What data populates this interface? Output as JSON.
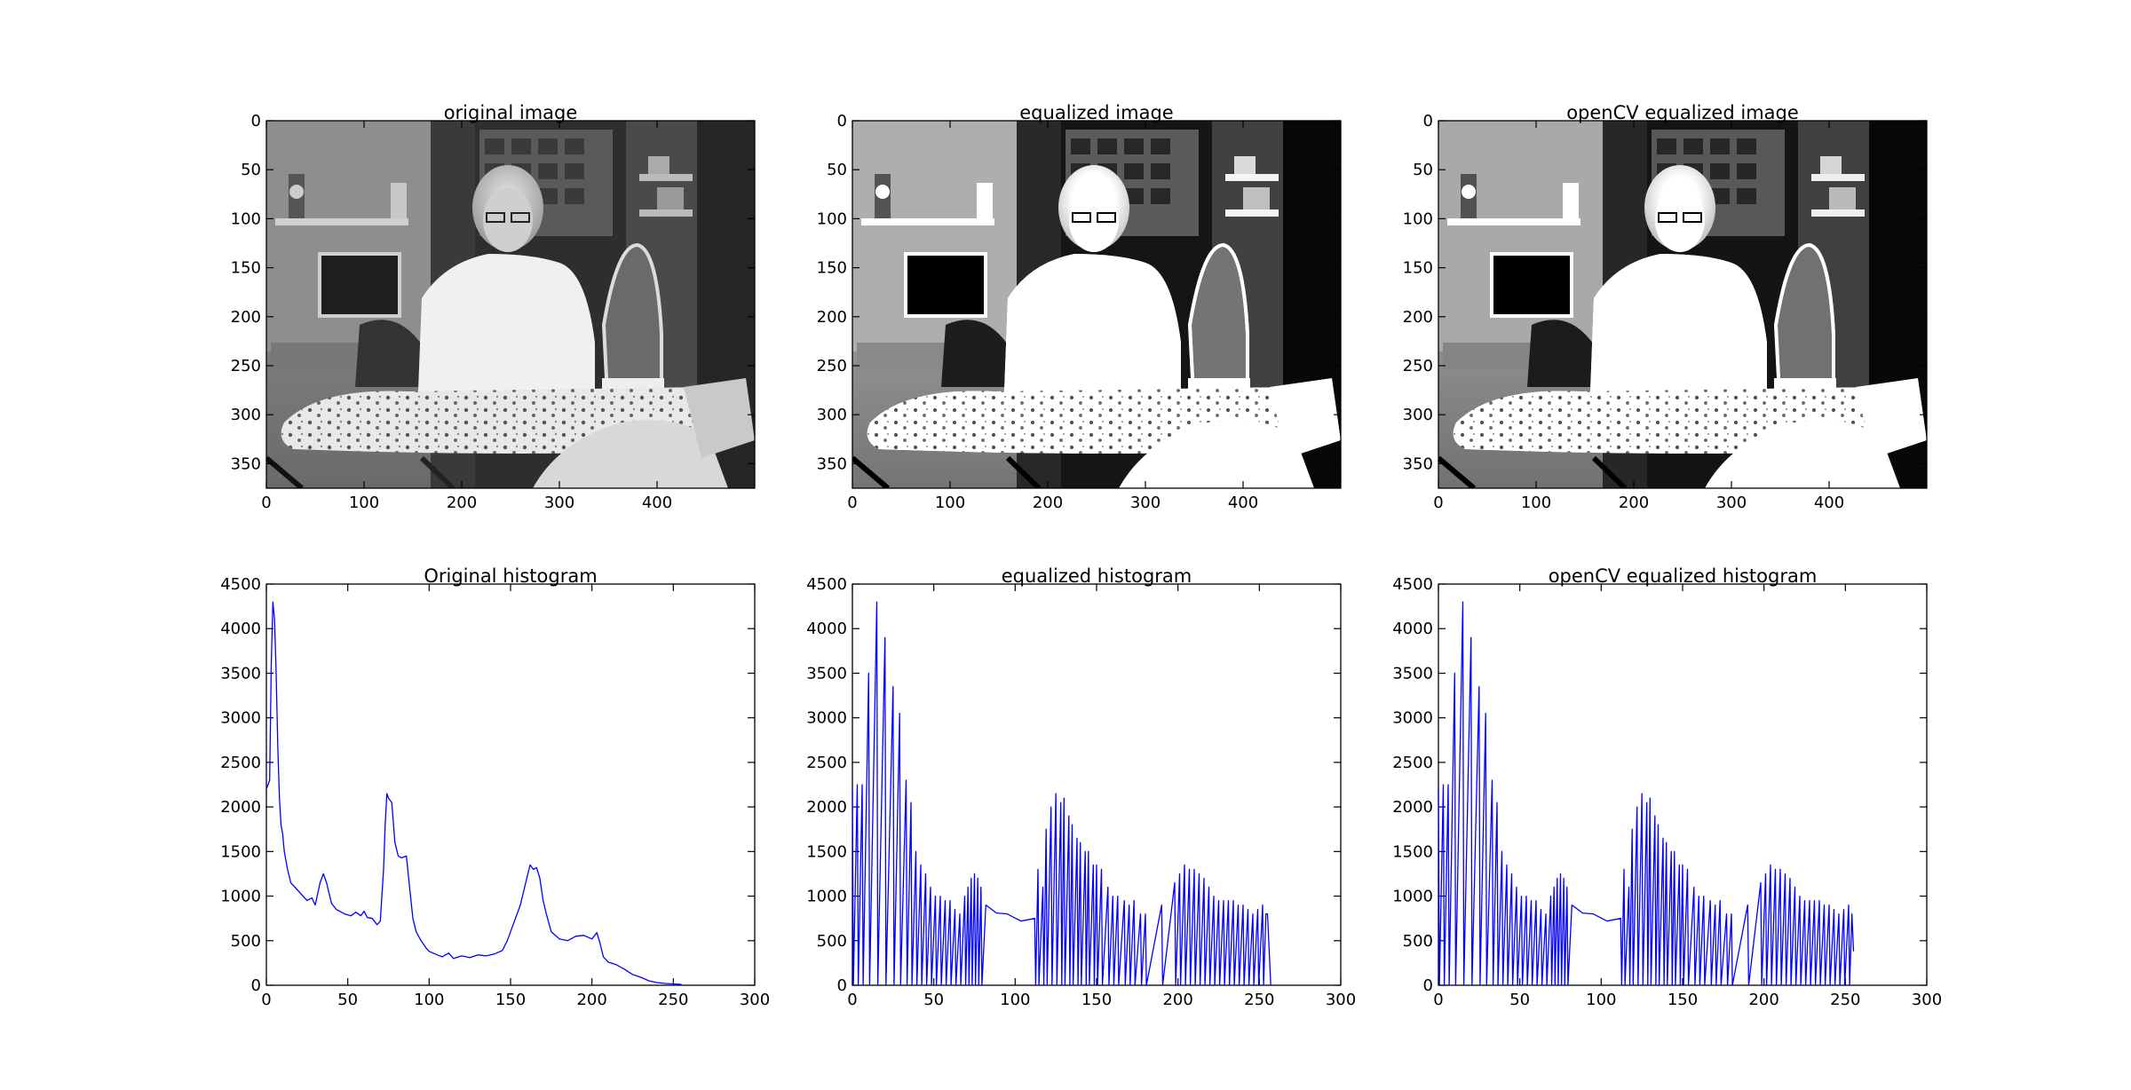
{
  "chart_data": [
    {
      "type": "image",
      "title": "original image",
      "image": "grayscale photo of a woman at an ironing board",
      "xlim": [
        0,
        500
      ],
      "ylim": [
        375,
        0
      ],
      "xticks": [
        0,
        100,
        200,
        300,
        400
      ],
      "yticks": [
        0,
        50,
        100,
        150,
        200,
        250,
        300,
        350
      ]
    },
    {
      "type": "image",
      "title": "equalized image",
      "image": "histogram-equalized grayscale photo of a woman at an ironing board",
      "xlim": [
        0,
        500
      ],
      "ylim": [
        375,
        0
      ],
      "xticks": [
        0,
        100,
        200,
        300,
        400
      ],
      "yticks": [
        0,
        50,
        100,
        150,
        200,
        250,
        300,
        350
      ]
    },
    {
      "type": "image",
      "title": "openCV equalized image",
      "image": "openCV histogram-equalized grayscale photo of a woman at an ironing board",
      "xlim": [
        0,
        500
      ],
      "ylim": [
        375,
        0
      ],
      "xticks": [
        0,
        100,
        200,
        300,
        400
      ],
      "yticks": [
        0,
        50,
        100,
        150,
        200,
        250,
        300,
        350
      ]
    },
    {
      "type": "line",
      "title": "Original histogram",
      "xlim": [
        0,
        300
      ],
      "ylim": [
        0,
        4500
      ],
      "xticks": [
        0,
        50,
        100,
        150,
        200,
        250,
        300
      ],
      "yticks": [
        0,
        500,
        1000,
        1500,
        2000,
        2500,
        3000,
        3500,
        4000,
        4500
      ],
      "color": "#0000ff",
      "series": [
        {
          "kind": "smooth",
          "points": [
            [
              0,
              2200
            ],
            [
              2,
              2300
            ],
            [
              3,
              3600
            ],
            [
              4,
              4300
            ],
            [
              5,
              4100
            ],
            [
              6,
              3500
            ],
            [
              7,
              2700
            ],
            [
              8,
              2100
            ],
            [
              9,
              1800
            ],
            [
              10,
              1700
            ],
            [
              11,
              1500
            ],
            [
              13,
              1300
            ],
            [
              15,
              1150
            ],
            [
              20,
              1050
            ],
            [
              25,
              950
            ],
            [
              28,
              980
            ],
            [
              30,
              900
            ],
            [
              33,
              1150
            ],
            [
              35,
              1250
            ],
            [
              37,
              1150
            ],
            [
              40,
              920
            ],
            [
              43,
              850
            ],
            [
              48,
              800
            ],
            [
              52,
              780
            ],
            [
              55,
              820
            ],
            [
              58,
              780
            ],
            [
              60,
              830
            ],
            [
              62,
              760
            ],
            [
              65,
              750
            ],
            [
              68,
              680
            ],
            [
              70,
              720
            ],
            [
              72,
              1300
            ],
            [
              73,
              1800
            ],
            [
              74,
              2150
            ],
            [
              75,
              2100
            ],
            [
              77,
              2050
            ],
            [
              79,
              1600
            ],
            [
              81,
              1450
            ],
            [
              83,
              1430
            ],
            [
              86,
              1450
            ],
            [
              88,
              1100
            ],
            [
              90,
              750
            ],
            [
              92,
              600
            ],
            [
              95,
              500
            ],
            [
              98,
              420
            ],
            [
              100,
              380
            ],
            [
              105,
              340
            ],
            [
              108,
              320
            ],
            [
              112,
              360
            ],
            [
              115,
              300
            ],
            [
              120,
              330
            ],
            [
              125,
              310
            ],
            [
              130,
              340
            ],
            [
              135,
              330
            ],
            [
              140,
              350
            ],
            [
              145,
              390
            ],
            [
              148,
              500
            ],
            [
              152,
              700
            ],
            [
              156,
              900
            ],
            [
              160,
              1200
            ],
            [
              162,
              1350
            ],
            [
              164,
              1300
            ],
            [
              166,
              1320
            ],
            [
              168,
              1200
            ],
            [
              170,
              950
            ],
            [
              172,
              800
            ],
            [
              175,
              600
            ],
            [
              180,
              520
            ],
            [
              185,
              500
            ],
            [
              190,
              550
            ],
            [
              195,
              560
            ],
            [
              200,
              520
            ],
            [
              203,
              590
            ],
            [
              205,
              470
            ],
            [
              207,
              320
            ],
            [
              210,
              260
            ],
            [
              215,
              230
            ],
            [
              220,
              180
            ],
            [
              225,
              120
            ],
            [
              230,
              90
            ],
            [
              235,
              50
            ],
            [
              240,
              30
            ],
            [
              245,
              20
            ],
            [
              250,
              15
            ],
            [
              255,
              10
            ]
          ]
        }
      ]
    },
    {
      "type": "line",
      "title": "equalized histogram",
      "xlim": [
        0,
        300
      ],
      "ylim": [
        0,
        4500
      ],
      "xticks": [
        0,
        50,
        100,
        150,
        200,
        250,
        300
      ],
      "yticks": [
        0,
        500,
        1000,
        1500,
        2000,
        2500,
        3000,
        3500,
        4000,
        4500
      ],
      "color": "#0000ff",
      "series": [
        {
          "kind": "sparse",
          "spikes": [
            [
              0,
              2200
            ],
            [
              3,
              2250
            ],
            [
              6,
              2250
            ],
            [
              10,
              3500
            ],
            [
              15,
              4300
            ],
            [
              20,
              3900
            ],
            [
              25,
              3350
            ],
            [
              29,
              3050
            ],
            [
              33,
              2300
            ],
            [
              36,
              2050
            ],
            [
              39,
              1500
            ],
            [
              42,
              1350
            ],
            [
              45,
              1250
            ],
            [
              48,
              1100
            ],
            [
              51,
              1000
            ],
            [
              54,
              1000
            ],
            [
              57,
              950
            ],
            [
              60,
              950
            ],
            [
              63,
              850
            ],
            [
              66,
              800
            ],
            [
              69,
              1000
            ],
            [
              71,
              1100
            ],
            [
              73,
              1200
            ],
            [
              75,
              1250
            ],
            [
              77,
              1200
            ],
            [
              79,
              1100
            ],
            [
              82,
              900
            ],
            [
              95,
              800
            ],
            [
              112,
              750
            ],
            [
              114,
              1300
            ],
            [
              117,
              1100
            ],
            [
              119,
              1750
            ],
            [
              122,
              2000
            ],
            [
              125,
              2150
            ],
            [
              128,
              2050
            ],
            [
              130,
              2100
            ],
            [
              133,
              1900
            ],
            [
              135,
              1800
            ],
            [
              138,
              1650
            ],
            [
              140,
              1600
            ],
            [
              143,
              1500
            ],
            [
              145,
              1500
            ],
            [
              148,
              1350
            ],
            [
              150,
              1350
            ],
            [
              153,
              1300
            ],
            [
              157,
              1100
            ],
            [
              160,
              1000
            ],
            [
              163,
              1000
            ],
            [
              167,
              950
            ],
            [
              170,
              900
            ],
            [
              173,
              950
            ],
            [
              177,
              800
            ],
            [
              180,
              800
            ],
            [
              190,
              900
            ],
            [
              198,
              1150
            ],
            [
              201,
              1250
            ],
            [
              204,
              1350
            ],
            [
              207,
              1300
            ],
            [
              210,
              1300
            ],
            [
              213,
              1250
            ],
            [
              216,
              1200
            ],
            [
              219,
              1100
            ],
            [
              222,
              1000
            ],
            [
              225,
              950
            ],
            [
              228,
              950
            ],
            [
              231,
              950
            ],
            [
              234,
              950
            ],
            [
              237,
              900
            ],
            [
              240,
              900
            ],
            [
              243,
              850
            ],
            [
              246,
              800
            ],
            [
              249,
              850
            ],
            [
              252,
              900
            ],
            [
              254,
              800
            ]
          ],
          "floor": [
            [
              255,
              800
            ],
            [
              257,
              0
            ]
          ]
        }
      ]
    },
    {
      "type": "line",
      "title": "openCV equalized histogram",
      "xlim": [
        0,
        300
      ],
      "ylim": [
        0,
        4500
      ],
      "xticks": [
        0,
        50,
        100,
        150,
        200,
        250,
        300
      ],
      "yticks": [
        0,
        500,
        1000,
        1500,
        2000,
        2500,
        3000,
        3500,
        4000,
        4500
      ],
      "color": "#0000ff",
      "series": [
        {
          "kind": "sparse",
          "spikes": [
            [
              0,
              2200
            ],
            [
              3,
              2250
            ],
            [
              6,
              2250
            ],
            [
              10,
              3500
            ],
            [
              15,
              4300
            ],
            [
              20,
              3900
            ],
            [
              25,
              3350
            ],
            [
              29,
              3050
            ],
            [
              33,
              2300
            ],
            [
              36,
              2050
            ],
            [
              39,
              1500
            ],
            [
              42,
              1350
            ],
            [
              45,
              1250
            ],
            [
              48,
              1100
            ],
            [
              51,
              1000
            ],
            [
              54,
              1000
            ],
            [
              57,
              950
            ],
            [
              60,
              950
            ],
            [
              63,
              850
            ],
            [
              66,
              800
            ],
            [
              69,
              1000
            ],
            [
              71,
              1100
            ],
            [
              73,
              1200
            ],
            [
              75,
              1250
            ],
            [
              77,
              1200
            ],
            [
              79,
              1100
            ],
            [
              82,
              900
            ],
            [
              95,
              800
            ],
            [
              112,
              750
            ],
            [
              114,
              1300
            ],
            [
              117,
              1100
            ],
            [
              119,
              1750
            ],
            [
              122,
              2000
            ],
            [
              125,
              2150
            ],
            [
              128,
              2050
            ],
            [
              130,
              2100
            ],
            [
              133,
              1900
            ],
            [
              135,
              1800
            ],
            [
              138,
              1650
            ],
            [
              140,
              1600
            ],
            [
              143,
              1500
            ],
            [
              145,
              1500
            ],
            [
              148,
              1350
            ],
            [
              150,
              1350
            ],
            [
              153,
              1300
            ],
            [
              157,
              1100
            ],
            [
              160,
              1000
            ],
            [
              163,
              1000
            ],
            [
              167,
              950
            ],
            [
              170,
              900
            ],
            [
              173,
              950
            ],
            [
              177,
              800
            ],
            [
              180,
              800
            ],
            [
              190,
              900
            ],
            [
              198,
              1150
            ],
            [
              201,
              1250
            ],
            [
              204,
              1350
            ],
            [
              207,
              1300
            ],
            [
              210,
              1300
            ],
            [
              213,
              1250
            ],
            [
              216,
              1200
            ],
            [
              219,
              1100
            ],
            [
              222,
              1000
            ],
            [
              225,
              950
            ],
            [
              228,
              950
            ],
            [
              231,
              950
            ],
            [
              234,
              950
            ],
            [
              237,
              900
            ],
            [
              240,
              900
            ],
            [
              243,
              850
            ],
            [
              246,
              800
            ],
            [
              249,
              850
            ],
            [
              252,
              900
            ],
            [
              254,
              800
            ]
          ],
          "floor": [
            [
              255,
              380
            ]
          ]
        }
      ]
    }
  ]
}
